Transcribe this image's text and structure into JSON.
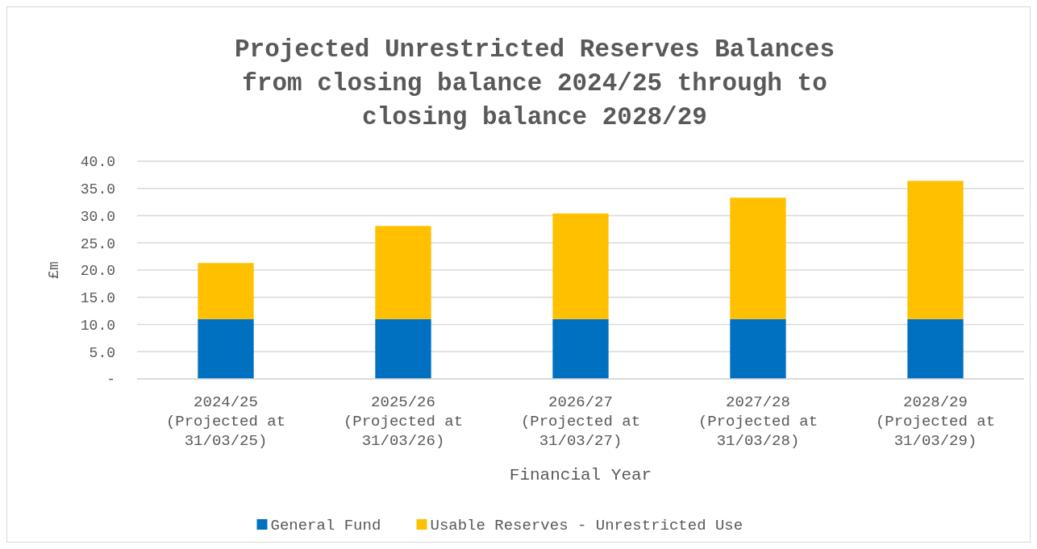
{
  "chart_data": {
    "type": "bar",
    "title": "Projected Unrestricted Reserves Balances from closing balance 2024/25 through to closing balance 2028/29",
    "xlabel": "Financial Year",
    "ylabel": "£m",
    "categories": [
      "2024/25 (Projected at 31/03/25)",
      "2025/26 (Projected at 31/03/26)",
      "2026/27 (Projected at 31/03/27)",
      "2027/28 (Projected at 31/03/28)",
      "2028/29 (Projected at 31/03/29)"
    ],
    "series": [
      {
        "name": "General Fund",
        "color": "#0070c0",
        "values": [
          11.0,
          11.0,
          11.0,
          11.0,
          11.0
        ]
      },
      {
        "name": "Usable Reserves - Unrestricted Use",
        "color": "#ffc000",
        "values": [
          10.3,
          17.1,
          19.4,
          22.3,
          25.4
        ]
      }
    ],
    "stacked": true,
    "ylim": [
      0,
      40
    ],
    "yticks": [
      {
        "value": 0,
        "label": "-"
      },
      {
        "value": 5,
        "label": "5.0"
      },
      {
        "value": 10,
        "label": "10.0"
      },
      {
        "value": 15,
        "label": "15.0"
      },
      {
        "value": 20,
        "label": "20.0"
      },
      {
        "value": 25,
        "label": "25.0"
      },
      {
        "value": 30,
        "label": "30.0"
      },
      {
        "value": 35,
        "label": "35.0"
      },
      {
        "value": 40,
        "label": "40.0"
      }
    ],
    "grid": "y",
    "legend": "bottom"
  }
}
